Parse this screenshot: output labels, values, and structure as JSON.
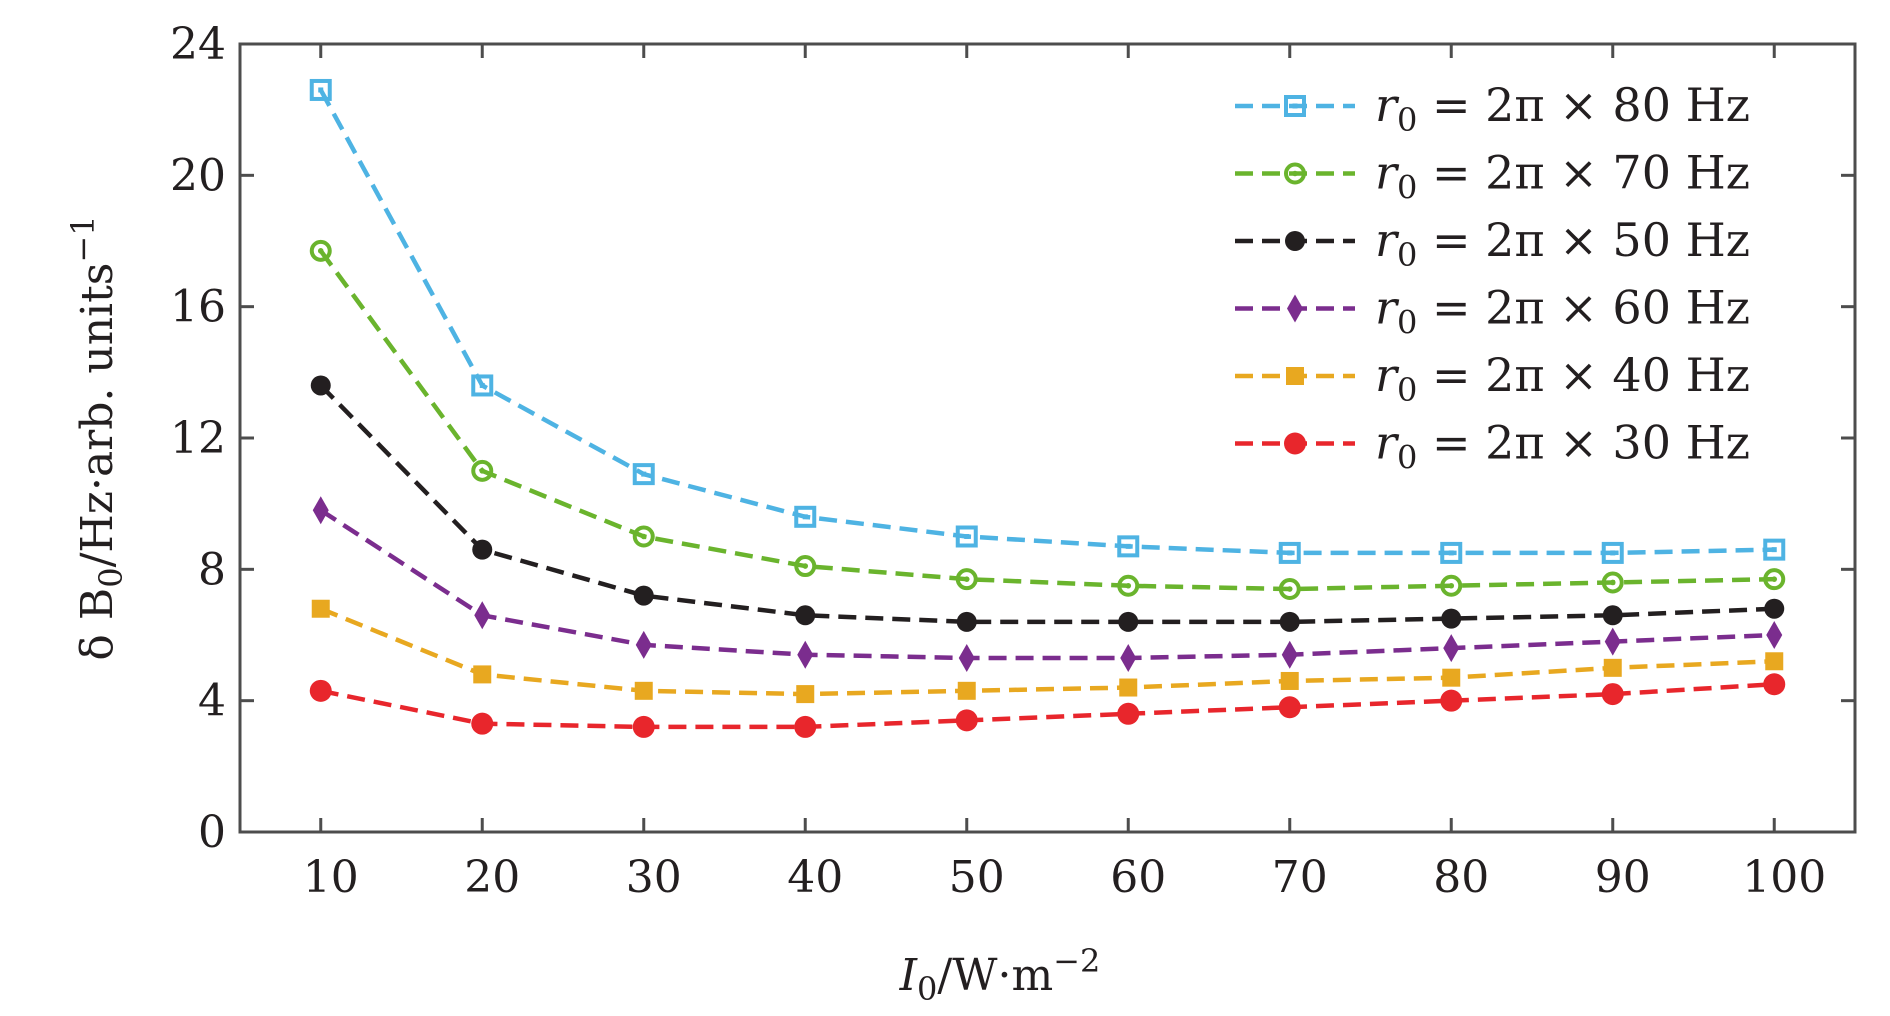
{
  "chart_data": {
    "type": "line",
    "xlabel": {
      "base": "I",
      "sub": "0",
      "rest": "/W·m",
      "sup": "−2"
    },
    "ylabel": {
      "base": "δ B",
      "sub": "0",
      "rest": "/Hz·arb. units",
      "sup": "−1"
    },
    "xlim": [
      5,
      105
    ],
    "ylim": [
      0,
      24
    ],
    "xticks": [
      10,
      20,
      30,
      40,
      50,
      60,
      70,
      80,
      90,
      100
    ],
    "yticks": [
      0,
      4,
      8,
      12,
      16,
      20,
      24
    ],
    "grid": false,
    "legend_position": "top-right",
    "line_style": "dashed",
    "x": [
      10,
      20,
      30,
      40,
      50,
      60,
      70,
      80,
      90,
      100
    ],
    "series": [
      {
        "name": "r0 = 2π × 80 Hz",
        "label_parts": [
          "r",
          "0",
          " = 2π × 80 Hz"
        ],
        "color": "#4eb3e3",
        "marker": "square-dotted",
        "values": [
          22.6,
          13.6,
          10.9,
          9.6,
          9.0,
          8.7,
          8.5,
          8.5,
          8.5,
          8.6
        ]
      },
      {
        "name": "r0 = 2π × 70 Hz",
        "label_parts": [
          "r",
          "0",
          " = 2π × 70 Hz"
        ],
        "color": "#6ab42d",
        "marker": "circle-dotted",
        "values": [
          17.7,
          11.0,
          9.0,
          8.1,
          7.7,
          7.5,
          7.4,
          7.5,
          7.6,
          7.7
        ]
      },
      {
        "name": "r0 = 2π × 50 Hz",
        "label_parts": [
          "r",
          "0",
          " = 2π × 50 Hz"
        ],
        "color": "#231f20",
        "marker": "circle",
        "values": [
          13.6,
          8.6,
          7.2,
          6.6,
          6.4,
          6.4,
          6.4,
          6.5,
          6.6,
          6.8
        ]
      },
      {
        "name": "r0 = 2π × 60 Hz",
        "label_parts": [
          "r",
          "0",
          " = 2π × 60 Hz"
        ],
        "color": "#7b2d8e",
        "marker": "diamond",
        "values": [
          9.8,
          6.6,
          5.7,
          5.4,
          5.3,
          5.3,
          5.4,
          5.6,
          5.8,
          6.0
        ]
      },
      {
        "name": "r0 = 2π × 40 Hz",
        "label_parts": [
          "r",
          "0",
          " = 2π × 40 Hz"
        ],
        "color": "#e8a820",
        "marker": "square",
        "values": [
          6.8,
          4.8,
          4.3,
          4.2,
          4.3,
          4.4,
          4.6,
          4.7,
          5.0,
          5.2
        ]
      },
      {
        "name": "r0 = 2π × 30 Hz",
        "label_parts": [
          "r",
          "0",
          " = 2π × 30 Hz"
        ],
        "color": "#e8262c",
        "marker": "circle-large",
        "values": [
          4.3,
          3.3,
          3.2,
          3.2,
          3.4,
          3.6,
          3.8,
          4.0,
          4.2,
          4.5
        ]
      }
    ]
  }
}
